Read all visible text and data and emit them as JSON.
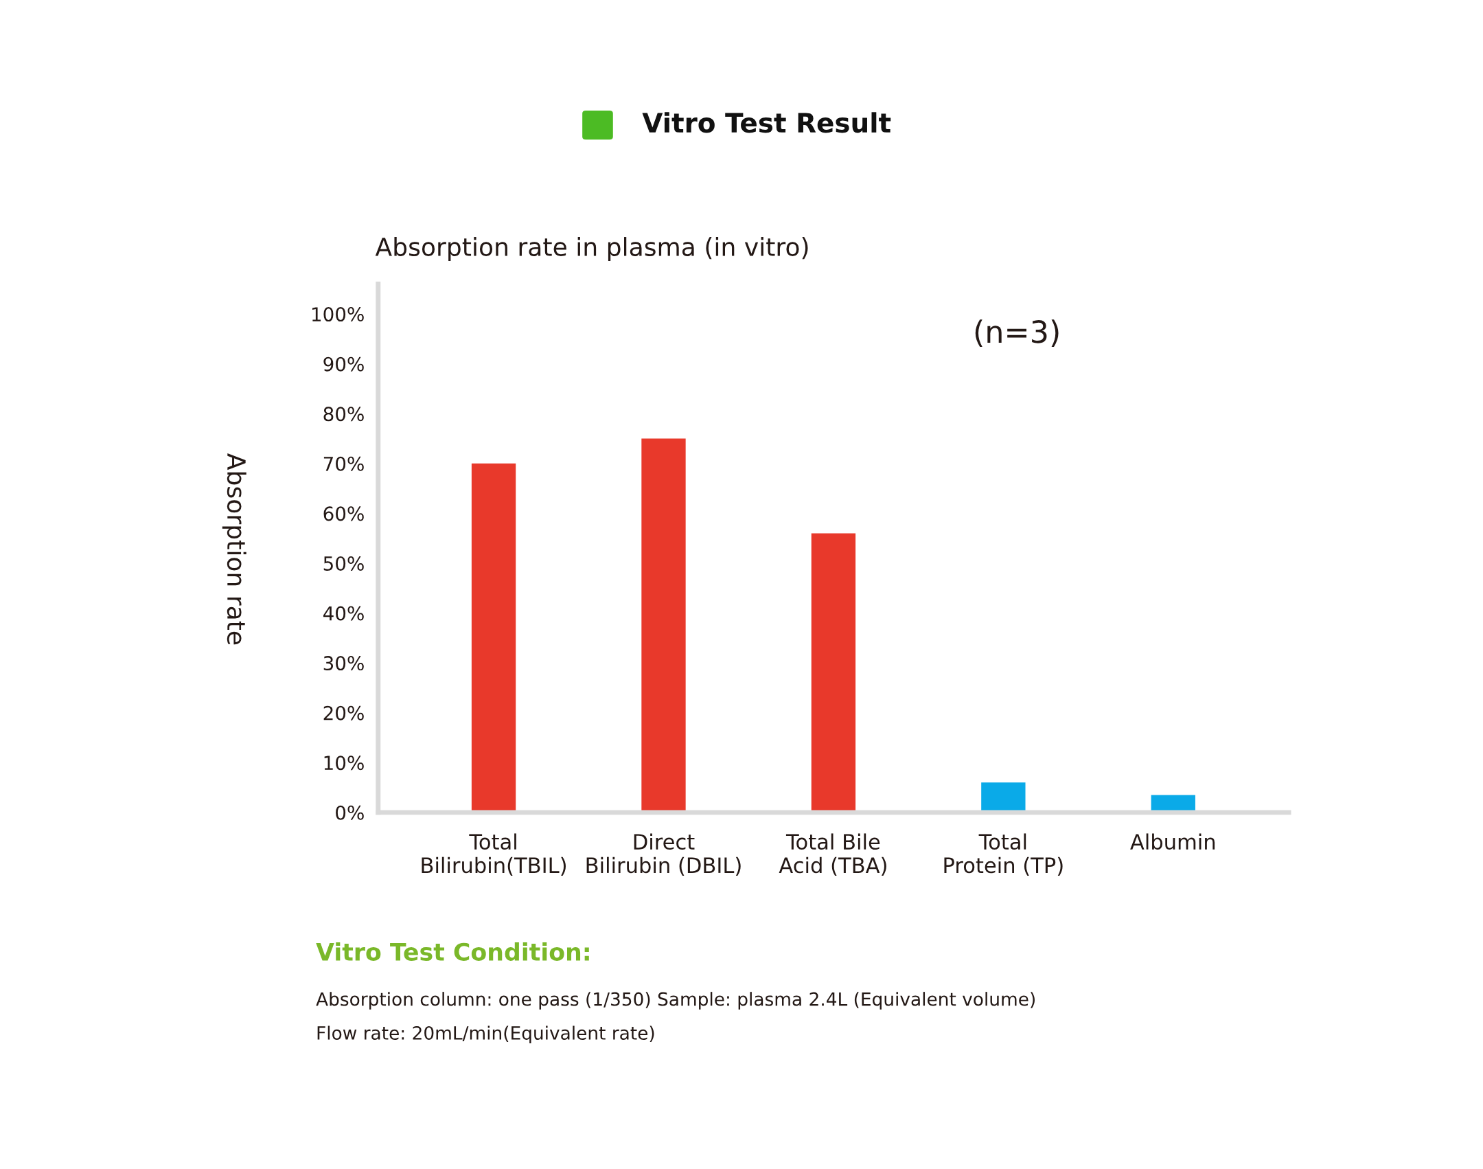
{
  "chart_data": {
    "type": "bar",
    "title": "Vitro Test Result",
    "subtitle": "Absorption rate in plasma (in vitro)",
    "ylabel": "Absorption rate",
    "categories": [
      "Total\nBilirubin(TBIL)",
      "Direct\nBilirubin (DBIL)",
      "Total Bile\nAcid (TBA)",
      "Total\nProtein (TP)",
      "Albumin"
    ],
    "values": [
      70,
      75,
      56,
      6,
      3.5
    ],
    "colors": [
      "#e8392b",
      "#e8392b",
      "#e8392b",
      "#0aaae8",
      "#0aaae8"
    ],
    "ylim": [
      0,
      106
    ],
    "yticks": [
      {
        "value": 0,
        "label": "0%"
      },
      {
        "value": 10,
        "label": "10%"
      },
      {
        "value": 20,
        "label": "20%"
      },
      {
        "value": 30,
        "label": "30%"
      },
      {
        "value": 40,
        "label": "40%"
      },
      {
        "value": 50,
        "label": "50%"
      },
      {
        "value": 60,
        "label": "60%"
      },
      {
        "value": 70,
        "label": "70%"
      },
      {
        "value": 80,
        "label": "80%"
      },
      {
        "value": 90,
        "label": "90%"
      },
      {
        "value": 100,
        "label": "100%"
      }
    ],
    "grid": false,
    "legend": false,
    "annotations": [
      "(n=3)",
      "Vitro Test Condition:",
      "Absorption column: one pass (1/350) Sample: plasma 2.4L (Equivalent volume)",
      "Flow rate: 20mL/min(Equivalent rate)"
    ]
  }
}
